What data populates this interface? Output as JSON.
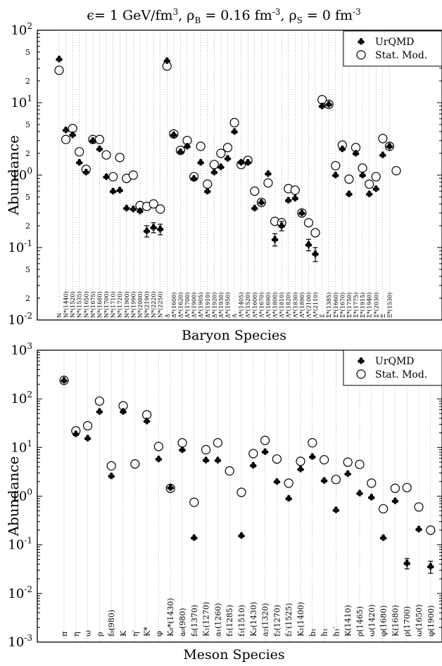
{
  "title": "ϵ= 1 GeV/fm³, ρ_B = 0.16 fm⁻³, ρ_S = 0 fm⁻³",
  "title_parts": {
    "eps": "ϵ= 1 GeV/fm",
    "eps_exp": "3",
    "rhoB": ", ρ",
    "rhoB_sub": "B",
    "rhoB_val": " = 0.16 fm",
    "rhoB_exp": "-3",
    "rhoS": ", ρ",
    "rhoS_sub": "S",
    "rhoS_val": " = 0 fm",
    "rhoS_exp": "-3"
  },
  "colors": {
    "urqmd": "#000000",
    "stat": "#000000",
    "grid": "#777777"
  },
  "chart_data": [
    {
      "type": "scatter",
      "yscale": "log",
      "ylim": [
        0.01,
        100
      ],
      "ylabel": "Abundance",
      "xlabel": "Baryon Species",
      "grid": "vertical dotted",
      "legend_position": "top-right",
      "yticks": [
        {
          "v": 0.01,
          "m": "10",
          "e": "-2"
        },
        {
          "v": 0.02,
          "m": "2"
        },
        {
          "v": 0.05,
          "m": "5"
        },
        {
          "v": 0.1,
          "m": "10",
          "e": "-1"
        },
        {
          "v": 0.2,
          "m": "2"
        },
        {
          "v": 0.5,
          "m": "5"
        },
        {
          "v": 1,
          "m": "10",
          "e": "0"
        },
        {
          "v": 2,
          "m": "2"
        },
        {
          "v": 5,
          "m": "5"
        },
        {
          "v": 10,
          "m": "10",
          "e": "1"
        },
        {
          "v": 20,
          "m": "2"
        },
        {
          "v": 50,
          "m": "5"
        },
        {
          "v": 100,
          "m": "10",
          "e": "2"
        }
      ],
      "series": [
        {
          "name": "UrQMD",
          "marker": "club"
        },
        {
          "name": "Stat. Mod.",
          "marker": "open-circle"
        }
      ],
      "categories": [
        "N",
        "N*(1440)",
        "N*(1520)",
        "N*(1535)",
        "N*(1650)",
        "N*(1675)",
        "N*(1680)",
        "N*(1700)",
        "N*(1710)",
        "N*(1720)",
        "N*(1900)",
        "N*(1990)",
        "N*(2080)",
        "N*(2190)",
        "N*(2220)",
        "N*(2250)",
        "Δ",
        "Δ*(1600)",
        "Δ*(1620)",
        "Δ*(1700)",
        "Δ*(1900)",
        "Δ*(1905)",
        "Δ*(1910)",
        "Δ*(1920)",
        "Δ*(1930)",
        "Δ*(1950)",
        "Λ",
        "Λ*(1405)",
        "Λ*(1520)",
        "Λ*(1600)",
        "Λ*(1670)",
        "Λ*(1690)",
        "Λ*(1800)",
        "Λ*(1810)",
        "Λ*(1820)",
        "Λ*(1830)",
        "Λ*(1890)",
        "Λ*(2100)",
        "Λ*(2110)",
        "Σ",
        "Σ*(1385)",
        "Σ*(1660)",
        "Σ*(1670)",
        "Σ*(1750)",
        "Σ*(1775)",
        "Σ*(1915)",
        "Σ*(1940)",
        "Σ*(2030)",
        "Ξ",
        "Ξ*(1530)"
      ],
      "urqmd": [
        40,
        4.2,
        3.6,
        1.5,
        1.1,
        3.0,
        2.3,
        0.95,
        0.6,
        0.62,
        0.35,
        0.34,
        0.32,
        0.17,
        0.19,
        0.18,
        38,
        3.6,
        2.1,
        2.5,
        0.9,
        1.5,
        0.6,
        1.1,
        1.3,
        1.7,
        4.0,
        1.5,
        1.5,
        0.35,
        0.42,
        1.05,
        0.13,
        0.2,
        0.45,
        0.48,
        0.3,
        0.11,
        0.082,
        9.0,
        9.5,
        1.0,
        2.3,
        0.55,
        2.0,
        1.0,
        0.55,
        0.65,
        1.9,
        2.5
      ],
      "urqmd_err": [
        0,
        0,
        0,
        0,
        0,
        0,
        0,
        0,
        0,
        0,
        0,
        0,
        0,
        0.03,
        0.03,
        0.03,
        0,
        0,
        0,
        0,
        0,
        0,
        0,
        0,
        0,
        0,
        0,
        0,
        0,
        0,
        0,
        0,
        0.025,
        0.03,
        0,
        0,
        0,
        0.02,
        0.018,
        0,
        0,
        0,
        0,
        0,
        0,
        0,
        0,
        0,
        0,
        0
      ],
      "stat": [
        28,
        3.1,
        4.4,
        2.1,
        1.2,
        3.1,
        3.1,
        1.9,
        0.95,
        1.75,
        0.9,
        1.0,
        0.38,
        0.37,
        0.4,
        0.34,
        32,
        3.7,
        2.2,
        3.0,
        0.95,
        2.5,
        0.75,
        1.4,
        2.0,
        2.4,
        5.3,
        1.4,
        1.6,
        0.6,
        0.42,
        0.78,
        0.23,
        0.22,
        0.65,
        0.62,
        0.3,
        0.22,
        0.16,
        11.0,
        9.5,
        1.35,
        2.6,
        0.88,
        2.4,
        1.25,
        0.75,
        0.95,
        3.2,
        2.5
      ],
      "stat_extra": {
        "after_last": 1.15
      }
    },
    {
      "type": "scatter",
      "yscale": "log",
      "ylim": [
        0.001,
        1000
      ],
      "ylabel": "Abundance",
      "xlabel": "Meson Species",
      "grid": "vertical dotted",
      "legend_position": "top-right",
      "yticks": [
        {
          "v": 0.001,
          "m": "10",
          "e": "-3"
        },
        {
          "v": 0.01,
          "m": "10",
          "e": "-2"
        },
        {
          "v": 0.1,
          "m": "10",
          "e": "-1"
        },
        {
          "v": 1,
          "m": "10",
          "e": "0"
        },
        {
          "v": 10,
          "m": "10",
          "e": "1"
        },
        {
          "v": 100,
          "m": "10",
          "e": "2"
        },
        {
          "v": 1000,
          "m": "10",
          "e": "3"
        }
      ],
      "series": [
        {
          "name": "UrQMD",
          "marker": "club"
        },
        {
          "name": "Stat. Mod.",
          "marker": "open-circle"
        }
      ],
      "categories": [
        "π",
        "η",
        "ω",
        "ρ",
        "f₀(980)",
        "K",
        "η′",
        "K*",
        "φ",
        "K₀*(1430)",
        "a₀(980)",
        "f₀(1370)",
        "K₁(1270)",
        "a₁(1260)",
        "f₁(1285)",
        "f₁(1510)",
        "K₂(1430)",
        "a₂(1320)",
        "f₂(1270)",
        "f₂′(1525)",
        "K₁(1400)",
        "b₁",
        "h₁",
        "h₁′",
        "K(1410)",
        "ρ(1465)",
        "ω(1420)",
        "φ(1680)",
        "K(1680)",
        "ρ(1700)",
        "ω(1650)",
        "φ(1900)"
      ],
      "urqmd": [
        240,
        19,
        15.5,
        55,
        2.6,
        55,
        null,
        35,
        5.8,
        1.5,
        9.0,
        0.14,
        5.5,
        5.5,
        null,
        0.155,
        4.3,
        8.2,
        2.0,
        0.9,
        3.6,
        6.5,
        2.1,
        0.52,
        2.9,
        1.15,
        0.95,
        0.14,
        0.8,
        0.042,
        0.21,
        0.036
      ],
      "urqmd_err": [
        0,
        0,
        0,
        0,
        0,
        0,
        0,
        0,
        0,
        0,
        0,
        0,
        0,
        0,
        0,
        0,
        0,
        0,
        0,
        0,
        0,
        0,
        0,
        0,
        0,
        0,
        0,
        0,
        0,
        0.01,
        0,
        0.01
      ],
      "stat": [
        240,
        22,
        28,
        90,
        4.2,
        72,
        4.6,
        47,
        10.5,
        1.45,
        12.5,
        0.75,
        9.0,
        12.5,
        3.3,
        1.2,
        7.5,
        14,
        5.8,
        1.85,
        5.2,
        12.5,
        5.6,
        2.2,
        5.0,
        4.5,
        1.85,
        0.55,
        1.45,
        1.5,
        0.6,
        0.2
      ]
    }
  ]
}
